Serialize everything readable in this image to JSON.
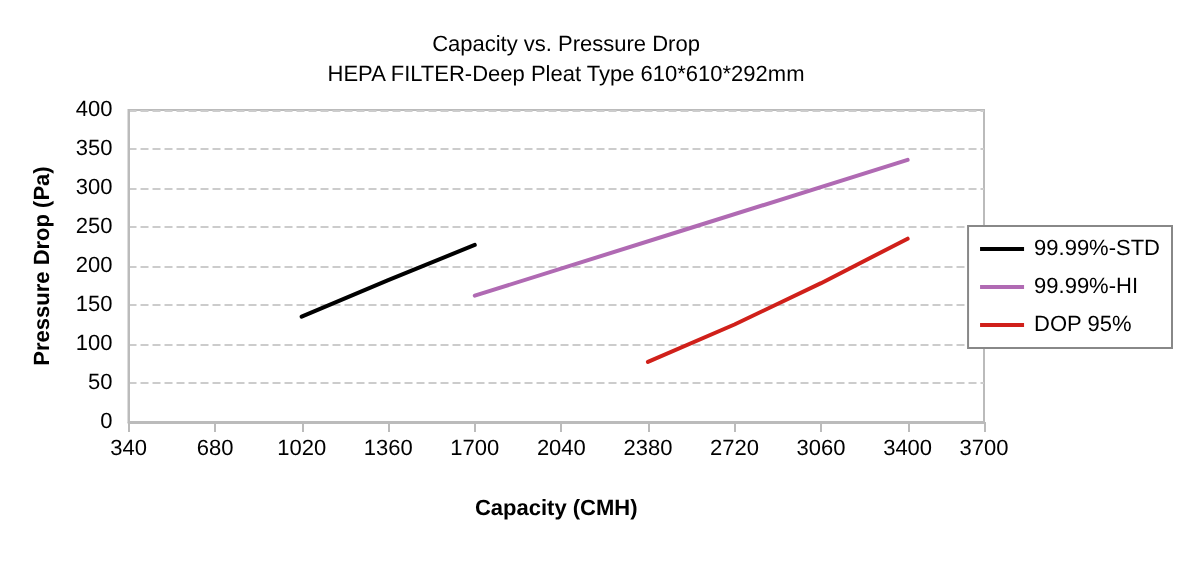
{
  "chart_data": {
    "type": "line",
    "title": "Capacity vs. Pressure Drop",
    "subtitle": "HEPA FILTER-Deep Pleat Type 610*610*292mm",
    "xlabel": "Capacity (CMH)",
    "ylabel": "Pressure Drop (Pa)",
    "xlim": [
      340,
      3700
    ],
    "xticks": [
      340,
      680,
      1020,
      1360,
      1700,
      2040,
      2380,
      2720,
      3060,
      3400,
      3700
    ],
    "ylim": [
      0,
      400
    ],
    "yticks": [
      0,
      50,
      100,
      150,
      200,
      250,
      300,
      350,
      400
    ],
    "series": [
      {
        "name": "99.99%-STD",
        "color": "#000000",
        "x": [
          1020,
          1360,
          1700
        ],
        "values": [
          135,
          182,
          227
        ]
      },
      {
        "name": "99.99%-HI",
        "color": "#b06ab3",
        "x": [
          1700,
          2550,
          3400
        ],
        "values": [
          162,
          249,
          336
        ]
      },
      {
        "name": "DOP 95%",
        "color": "#d0201a",
        "x": [
          2380,
          2720,
          3060,
          3400
        ],
        "values": [
          77,
          125,
          178,
          235
        ]
      }
    ],
    "grid": "y",
    "legend": "right",
    "marker": "none",
    "line_style": "solid"
  }
}
